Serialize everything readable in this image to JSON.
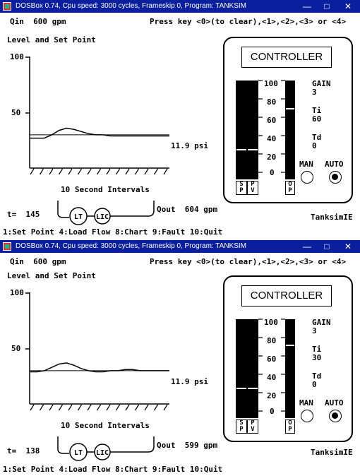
{
  "windows": [
    {
      "title": "DOSBox 0.74, Cpu speed:     3000 cycles, Frameskip  0, Program:   TANKSIM",
      "qin": "Qin  600 gpm",
      "press_key": "Press key <0>(to clear),<1>,<2>,<3> or <4>",
      "chart_title": "Level and Set Point",
      "y_tick_100": "100",
      "y_tick_50": "50",
      "pressure": "11.9 psi",
      "x_label": "10 Second Intervals",
      "time": "t=  145",
      "lt": "LT",
      "lic": "LIC",
      "qout": "Qout  604 gpm",
      "brand": "TanksimIE",
      "menu": "1:Set Point 4:Load Flow 8:Chart 9:Fault 10:Quit",
      "controller": {
        "title": "CONTROLLER",
        "scale": [
          "100",
          "80",
          "60",
          "40",
          "20",
          "0"
        ],
        "sp_label": "S P",
        "pv_label": "P V",
        "op_label": "O P",
        "sp": 30,
        "pv": 30,
        "op": 72,
        "gain_label": "GAIN",
        "gain": "3",
        "ti_label": "Ti",
        "ti": "60",
        "td_label": "Td",
        "td": "0",
        "man_label": "MAN",
        "auto_label": "AUTO",
        "mode": "AUTO"
      },
      "chart_data": {
        "type": "line",
        "ylim": [
          0,
          100
        ],
        "series": [
          {
            "values": [
              27,
              27,
              27,
              30,
              34,
              36,
              35,
              33,
              31,
              30,
              30,
              29,
              29,
              29,
              29,
              29,
              29,
              29,
              29,
              29
            ]
          },
          {
            "values": [
              30,
              30,
              30,
              30,
              30,
              30,
              30,
              30,
              30,
              30,
              30,
              30,
              30,
              30,
              30,
              30,
              30,
              30,
              30,
              30
            ]
          }
        ]
      }
    },
    {
      "title": "DOSBox 0.74, Cpu speed:     3000 cycles, Frameskip  0, Program:   TANKSIM",
      "qin": "Qin  600 gpm",
      "press_key": "Press key <0>(to clear),<1>,<2>,<3> or <4>",
      "chart_title": "Level and Set Point",
      "y_tick_100": "100",
      "y_tick_50": "50",
      "pressure": "11.9 psi",
      "x_label": "10 Second Intervals",
      "time": "t=  138",
      "lt": "LT",
      "lic": "LIC",
      "qout": "Qout  599 gpm",
      "brand": "TanksimIE",
      "menu": "1:Set Point 4:Load Flow 8:Chart 9:Fault 10:Quit",
      "controller": {
        "title": "CONTROLLER",
        "scale": [
          "100",
          "80",
          "60",
          "40",
          "20",
          "0"
        ],
        "sp_label": "S P",
        "pv_label": "P V",
        "op_label": "O P",
        "sp": 30,
        "pv": 30,
        "op": 74,
        "gain_label": "GAIN",
        "gain": "3",
        "ti_label": "Ti",
        "ti": "30",
        "td_label": "Td",
        "td": "0",
        "man_label": "MAN",
        "auto_label": "AUTO",
        "mode": "AUTO"
      },
      "chart_data": {
        "type": "line",
        "ylim": [
          0,
          100
        ],
        "series": [
          {
            "values": [
              29,
              29,
              30,
              33,
              36,
              37,
              35,
              32,
              30,
              29,
              29,
              30,
              30,
              31,
              31,
              30,
              30,
              30,
              30,
              30
            ]
          },
          {
            "values": [
              30,
              30,
              30,
              30,
              30,
              30,
              30,
              30,
              30,
              30,
              30,
              30,
              30,
              30,
              30,
              30,
              30,
              30,
              30,
              30
            ]
          }
        ]
      }
    }
  ]
}
